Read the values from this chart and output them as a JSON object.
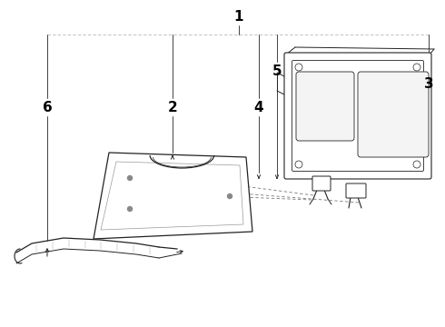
{
  "bg_color": "#ffffff",
  "line_color": "#222222",
  "label_color": "#000000",
  "gray": "#888888",
  "light_gray": "#cccccc",
  "leader_dashed": "#777777"
}
